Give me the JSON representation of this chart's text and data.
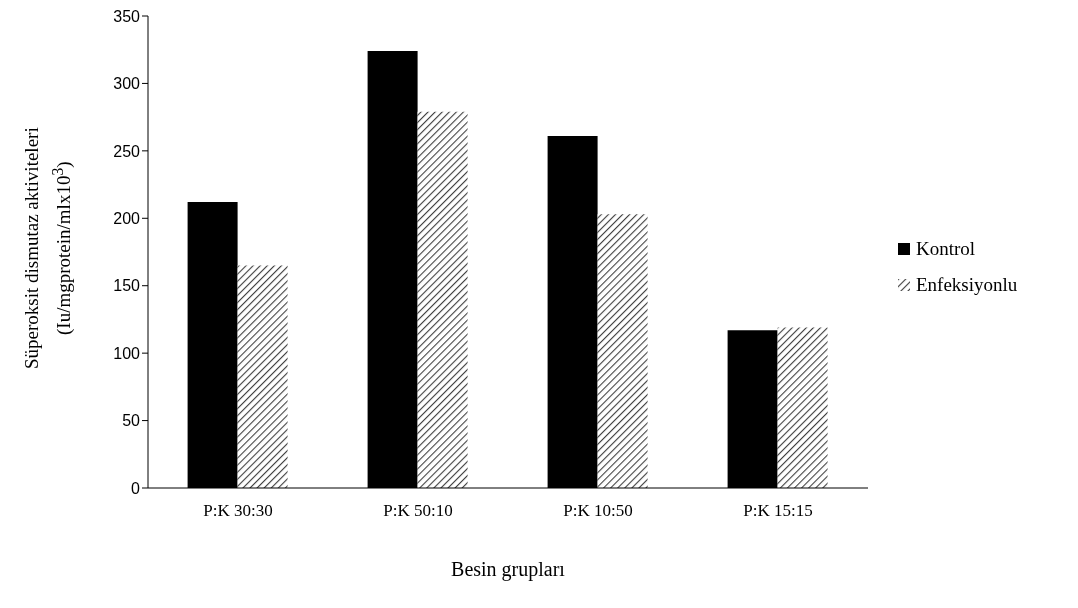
{
  "chart_data": {
    "type": "bar",
    "xlabel": "Besin grupları",
    "ylabel": "Süperoksit dismutaz aktiviteleri\n(Iu/mgprotein/mlx10$^{3}$)",
    "categories": [
      "P:K 30:30",
      "P:K 50:10",
      "P:K 10:50",
      "P:K 15:15"
    ],
    "series": [
      {
        "name": "Kontrol",
        "color": "#000000",
        "values": [
          212,
          324,
          261,
          117
        ]
      },
      {
        "name": "Enfeksiyonlu",
        "color": "#404040",
        "values": [
          165,
          279,
          203,
          119
        ]
      }
    ],
    "ylim": [
      0,
      350
    ],
    "yticks": [
      0,
      50,
      100,
      150,
      200,
      250,
      300,
      350
    ],
    "grid": false,
    "legend": "right"
  }
}
